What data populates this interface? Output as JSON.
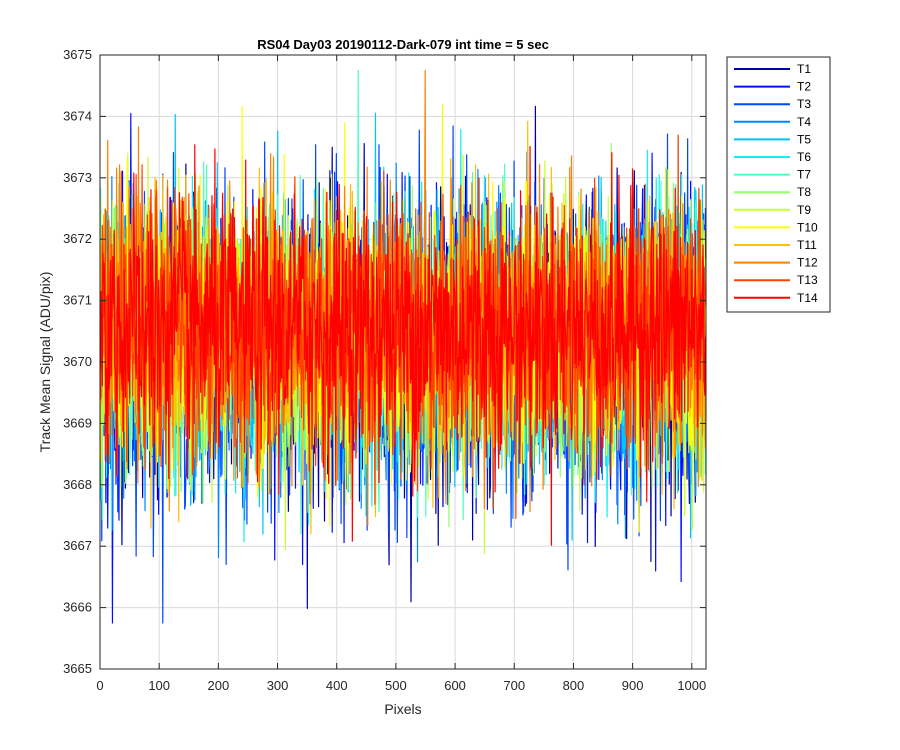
{
  "chart_data": {
    "type": "line",
    "title": "RS04 Day03 20190112-Dark-079 int time = 5 sec",
    "xlabel": "Pixels",
    "ylabel": "Track Mean Signal (ADU/pix)",
    "xlim": [
      0,
      1024
    ],
    "ylim": [
      3665,
      3675
    ],
    "xticks": [
      0,
      100,
      200,
      300,
      400,
      500,
      600,
      700,
      800,
      900,
      1000
    ],
    "yticks": [
      3665,
      3666,
      3667,
      3668,
      3669,
      3670,
      3671,
      3672,
      3673,
      3674,
      3675
    ],
    "grid": true,
    "legend_position": "outside-top-right",
    "n_points": 1024,
    "noise_model": {
      "mean": 3670.4,
      "noise_amplitude": 1.1,
      "first_series_min": 3665.75,
      "max_value": 3674.75
    },
    "series": [
      {
        "name": "T1",
        "color": "#0000a8"
      },
      {
        "name": "T2",
        "color": "#0010ff"
      },
      {
        "name": "T3",
        "color": "#0048ff"
      },
      {
        "name": "T4",
        "color": "#0088ff"
      },
      {
        "name": "T5",
        "color": "#00c4ff"
      },
      {
        "name": "T6",
        "color": "#10f0f0"
      },
      {
        "name": "T7",
        "color": "#50ffc0"
      },
      {
        "name": "T8",
        "color": "#90ff70"
      },
      {
        "name": "T9",
        "color": "#c8ff30"
      },
      {
        "name": "T10",
        "color": "#ffff00"
      },
      {
        "name": "T11",
        "color": "#ffc000"
      },
      {
        "name": "T12",
        "color": "#ff8000"
      },
      {
        "name": "T13",
        "color": "#ff4000"
      },
      {
        "name": "T14",
        "color": "#ff0000"
      }
    ]
  }
}
